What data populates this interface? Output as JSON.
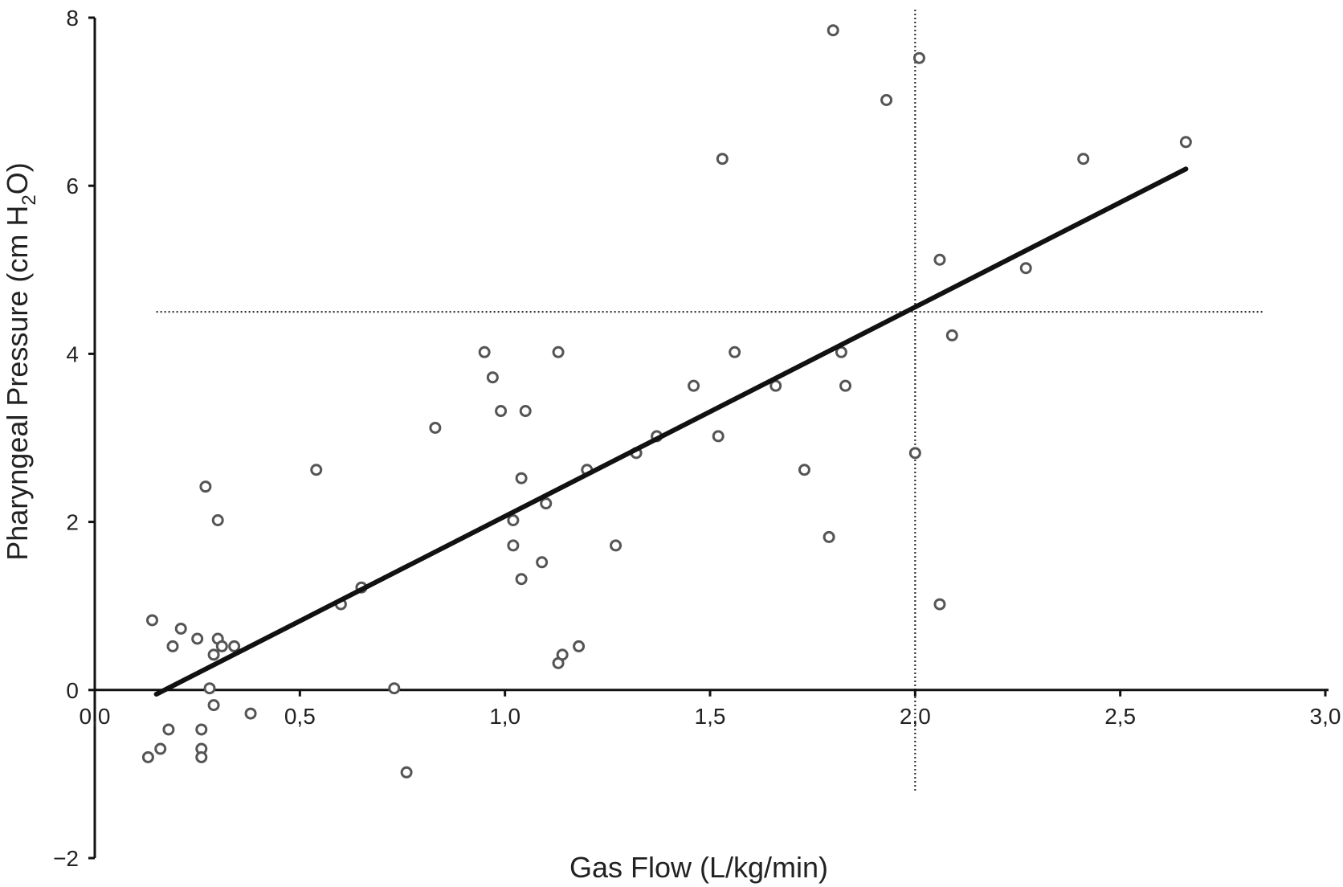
{
  "chart_data": {
    "type": "scatter",
    "title": "",
    "xlabel": "Gas Flow (L/kg/min)",
    "ylabel": {
      "main": "Pharyngeal Pressure (cm H",
      "sub": "2",
      "tail": "O)"
    },
    "xlim": [
      0,
      3.0
    ],
    "ylim": [
      -2,
      8
    ],
    "x_ticks": [
      0,
      0.5,
      1.0,
      1.5,
      2.0,
      2.5,
      3.0
    ],
    "x_tick_labels": [
      "0,0",
      "0,5",
      "1,0",
      "1,5",
      "2,0",
      "2,5",
      "3,0"
    ],
    "y_ticks": [
      -2,
      0,
      2,
      4,
      6,
      8
    ],
    "y_tick_labels": [
      "−2",
      "0",
      "2",
      "4",
      "6",
      "8"
    ],
    "grid": false,
    "legend": "none",
    "colors": {
      "points": "#555555",
      "line": "#111111",
      "axis": "#111111"
    },
    "reference_lines": {
      "x": 2.0,
      "y": 4.5
    },
    "regression_line": {
      "x": [
        0.15,
        2.66
      ],
      "y": [
        -0.05,
        6.2
      ]
    },
    "points": [
      {
        "x": 0.14,
        "y": 0.83
      },
      {
        "x": 0.19,
        "y": 0.52
      },
      {
        "x": 0.21,
        "y": 0.73
      },
      {
        "x": 0.25,
        "y": 0.61
      },
      {
        "x": 0.29,
        "y": 0.42
      },
      {
        "x": 0.3,
        "y": 0.61
      },
      {
        "x": 0.31,
        "y": 0.52
      },
      {
        "x": 0.34,
        "y": 0.52
      },
      {
        "x": 0.27,
        "y": 2.42
      },
      {
        "x": 0.3,
        "y": 2.02
      },
      {
        "x": 0.28,
        "y": 0.02
      },
      {
        "x": 0.29,
        "y": -0.18
      },
      {
        "x": 0.26,
        "y": -0.47
      },
      {
        "x": 0.18,
        "y": -0.47
      },
      {
        "x": 0.16,
        "y": -0.7
      },
      {
        "x": 0.13,
        "y": -0.8
      },
      {
        "x": 0.26,
        "y": -0.7
      },
      {
        "x": 0.26,
        "y": -0.8
      },
      {
        "x": 0.38,
        "y": -0.28
      },
      {
        "x": 0.54,
        "y": 2.62
      },
      {
        "x": 0.6,
        "y": 1.02
      },
      {
        "x": 0.65,
        "y": 1.22
      },
      {
        "x": 0.73,
        "y": 0.02
      },
      {
        "x": 0.76,
        "y": -0.98
      },
      {
        "x": 0.83,
        "y": 3.12
      },
      {
        "x": 0.95,
        "y": 4.02
      },
      {
        "x": 0.97,
        "y": 3.72
      },
      {
        "x": 0.99,
        "y": 3.32
      },
      {
        "x": 1.05,
        "y": 3.32
      },
      {
        "x": 1.04,
        "y": 2.52
      },
      {
        "x": 1.02,
        "y": 2.02
      },
      {
        "x": 1.02,
        "y": 1.72
      },
      {
        "x": 1.04,
        "y": 1.32
      },
      {
        "x": 1.1,
        "y": 2.22
      },
      {
        "x": 1.09,
        "y": 1.52
      },
      {
        "x": 1.13,
        "y": 4.02
      },
      {
        "x": 1.13,
        "y": 0.32
      },
      {
        "x": 1.14,
        "y": 0.42
      },
      {
        "x": 1.18,
        "y": 0.52
      },
      {
        "x": 1.2,
        "y": 2.62
      },
      {
        "x": 1.27,
        "y": 1.72
      },
      {
        "x": 1.32,
        "y": 2.82
      },
      {
        "x": 1.37,
        "y": 3.02
      },
      {
        "x": 1.46,
        "y": 3.62
      },
      {
        "x": 1.52,
        "y": 3.02
      },
      {
        "x": 1.53,
        "y": 6.32
      },
      {
        "x": 1.56,
        "y": 4.02
      },
      {
        "x": 1.66,
        "y": 3.62
      },
      {
        "x": 1.73,
        "y": 2.62
      },
      {
        "x": 1.79,
        "y": 1.82
      },
      {
        "x": 1.8,
        "y": 7.85
      },
      {
        "x": 1.82,
        "y": 4.02
      },
      {
        "x": 1.83,
        "y": 3.62
      },
      {
        "x": 1.93,
        "y": 7.02
      },
      {
        "x": 2.0,
        "y": 2.82
      },
      {
        "x": 2.01,
        "y": 7.52
      },
      {
        "x": 2.06,
        "y": 5.12
      },
      {
        "x": 2.06,
        "y": 1.02
      },
      {
        "x": 2.09,
        "y": 4.22
      },
      {
        "x": 2.27,
        "y": 5.02
      },
      {
        "x": 2.41,
        "y": 6.32
      },
      {
        "x": 2.66,
        "y": 6.52
      }
    ]
  }
}
